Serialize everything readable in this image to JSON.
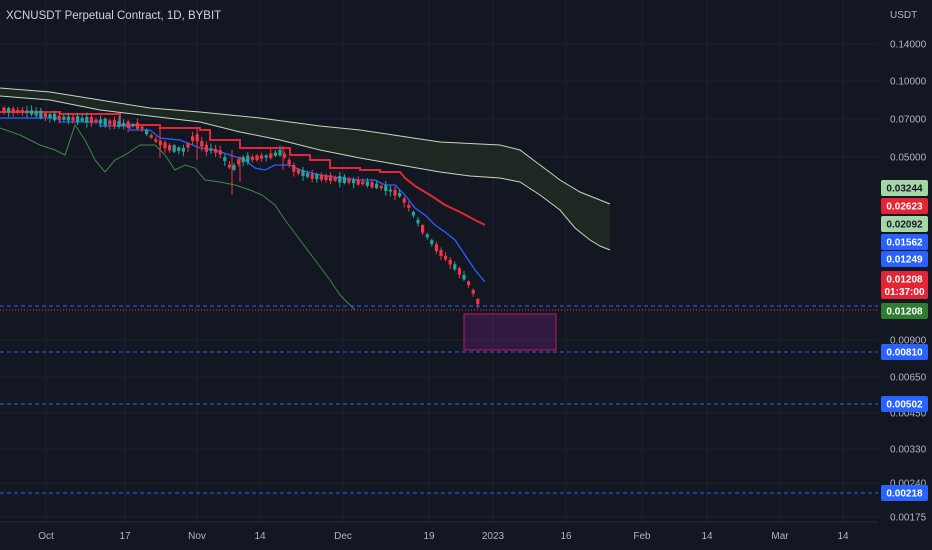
{
  "header": {
    "title": "XCNUSDT Perpetual Contract, 1D, BYBIT"
  },
  "colors": {
    "background": "#131722",
    "grid": "#1c2030",
    "up": "#26a69a",
    "down": "#f23645",
    "red_line": "#e32636",
    "blue_line": "#2962ff",
    "green_line": "#4caf50",
    "cloud_fill": "#1f2a22",
    "cloud_edge": "#c5d6c1",
    "dashed_level": "#2962ff",
    "current_price_line": "#f23645",
    "target_box": "#9c27b0"
  },
  "chart_data": {
    "type": "candlestick",
    "title": "",
    "xlabel": "",
    "ylabel": "",
    "y_unit": "USDT",
    "y_scale": "log",
    "y_ticks": [
      "0.14000",
      "0.10000",
      "0.07000",
      "0.05000",
      "0.00900",
      "0.00650",
      "0.00450",
      "0.00330",
      "0.00240",
      "0.00175"
    ],
    "x_ticks": [
      "Oct",
      "17",
      "Nov",
      "14",
      "Dec",
      "19",
      "2023",
      "16",
      "Feb",
      "14",
      "Mar",
      "14"
    ],
    "price_tags": [
      {
        "value": "0.03244",
        "style": "light-green"
      },
      {
        "value": "0.02623",
        "style": "red"
      },
      {
        "value": "0.02092",
        "style": "light-green"
      },
      {
        "value": "0.01562",
        "style": "blue"
      },
      {
        "value": "0.01249",
        "style": "blue"
      },
      {
        "value": "0.01208",
        "countdown": "01:37:00",
        "style": "red"
      },
      {
        "value": "0.01208",
        "style": "green"
      },
      {
        "value": "0.00810",
        "style": "blue"
      },
      {
        "value": "0.00502",
        "style": "blue"
      },
      {
        "value": "0.00218",
        "style": "blue"
      }
    ],
    "horizontal_levels": [
      0.0125,
      0.0081,
      0.00502,
      0.00218
    ],
    "current_price": 0.01208,
    "target_box": {
      "x_from": "2022-12-22",
      "x_to": "2023-01-10",
      "y_high": 0.0115,
      "y_low": 0.0081
    },
    "ohlc_sample": [
      {
        "date": "2022-09-24",
        "open": 0.066,
        "close": 0.068
      },
      {
        "date": "2022-10-03",
        "open": 0.07,
        "close": 0.072
      },
      {
        "date": "2022-10-17",
        "open": 0.067,
        "close": 0.066
      },
      {
        "date": "2022-10-24",
        "open": 0.058,
        "close": 0.057
      },
      {
        "date": "2022-11-01",
        "open": 0.067,
        "close": 0.059
      },
      {
        "date": "2022-11-09",
        "open": 0.049,
        "close": 0.047
      },
      {
        "date": "2022-11-14",
        "open": 0.045,
        "close": 0.046
      },
      {
        "date": "2022-11-21",
        "open": 0.047,
        "close": 0.046
      },
      {
        "date": "2022-11-28",
        "open": 0.041,
        "close": 0.04
      },
      {
        "date": "2022-12-05",
        "open": 0.039,
        "close": 0.038
      },
      {
        "date": "2022-12-12",
        "open": 0.034,
        "close": 0.033
      },
      {
        "date": "2022-12-16",
        "open": 0.028,
        "close": 0.026
      },
      {
        "date": "2022-12-20",
        "open": 0.021,
        "close": 0.019
      },
      {
        "date": "2022-12-24",
        "open": 0.016,
        "close": 0.015
      },
      {
        "date": "2022-12-28",
        "open": 0.0128,
        "close": 0.0121
      }
    ]
  }
}
